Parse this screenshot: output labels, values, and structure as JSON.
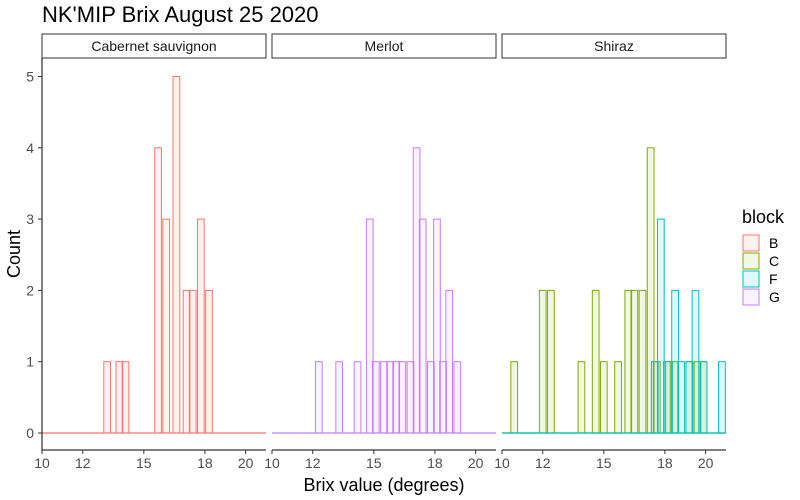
{
  "chart_data": {
    "type": "bar",
    "subtype": "faceted-histogram",
    "title": "NK'MIP Brix August 25 2020",
    "xlabel": "Brix value (degrees)",
    "ylabel": "Count",
    "xlim": [
      10,
      21
    ],
    "ylim": [
      0,
      5
    ],
    "x_ticks": [
      10,
      12,
      15,
      18,
      20
    ],
    "y_ticks": [
      0,
      1,
      2,
      3,
      4,
      5
    ],
    "binwidth": 0.33,
    "fill_alpha": 0.1,
    "legend": {
      "title": "block",
      "position": "right",
      "entries": [
        {
          "label": "B",
          "color": "#F8766D"
        },
        {
          "label": "C",
          "color": "#7CAE00"
        },
        {
          "label": "F",
          "color": "#00BFC4"
        },
        {
          "label": "G",
          "color": "#C77CFF"
        }
      ]
    },
    "facets": [
      {
        "name": "Cabernet sauvignon",
        "series": [
          {
            "name": "B",
            "color": "#F8766D",
            "bins": [
              [
                13.2,
                1
              ],
              [
                13.8,
                1
              ],
              [
                14.1,
                1
              ],
              [
                15.7,
                4
              ],
              [
                16.1,
                3
              ],
              [
                16.6,
                5
              ],
              [
                17.1,
                2
              ],
              [
                17.4,
                2
              ],
              [
                17.8,
                3
              ],
              [
                18.2,
                2
              ]
            ]
          }
        ]
      },
      {
        "name": "Merlot",
        "series": [
          {
            "name": "G",
            "color": "#C77CFF",
            "bins": [
              [
                12.3,
                1
              ],
              [
                13.3,
                1
              ],
              [
                14.2,
                1
              ],
              [
                14.8,
                3
              ],
              [
                15.1,
                1
              ],
              [
                15.5,
                1
              ],
              [
                15.8,
                1
              ],
              [
                16.1,
                1
              ],
              [
                16.4,
                1
              ],
              [
                16.8,
                1
              ],
              [
                17.1,
                4
              ],
              [
                17.4,
                3
              ],
              [
                17.8,
                1
              ],
              [
                18.1,
                3
              ],
              [
                18.4,
                1
              ],
              [
                18.7,
                2
              ],
              [
                19.1,
                1
              ]
            ]
          }
        ]
      },
      {
        "name": "Shiraz",
        "series": [
          {
            "name": "C",
            "color": "#7CAE00",
            "bins": [
              [
                10.6,
                1
              ],
              [
                12.0,
                2
              ],
              [
                12.4,
                2
              ],
              [
                13.9,
                1
              ],
              [
                14.6,
                2
              ],
              [
                15.0,
                1
              ],
              [
                15.7,
                1
              ],
              [
                16.2,
                2
              ],
              [
                16.5,
                2
              ],
              [
                16.9,
                2
              ],
              [
                17.3,
                4
              ],
              [
                17.6,
                1
              ],
              [
                18.1,
                1
              ],
              [
                18.5,
                1
              ],
              [
                19.2,
                1
              ],
              [
                19.6,
                1
              ],
              [
                19.9,
                1
              ]
            ]
          },
          {
            "name": "F",
            "color": "#00BFC4",
            "bins": [
              [
                17.5,
                1
              ],
              [
                17.8,
                3
              ],
              [
                18.2,
                1
              ],
              [
                18.5,
                2
              ],
              [
                18.8,
                1
              ],
              [
                19.2,
                1
              ],
              [
                19.5,
                2
              ],
              [
                19.9,
                1
              ],
              [
                20.8,
                1
              ]
            ]
          }
        ]
      }
    ]
  }
}
